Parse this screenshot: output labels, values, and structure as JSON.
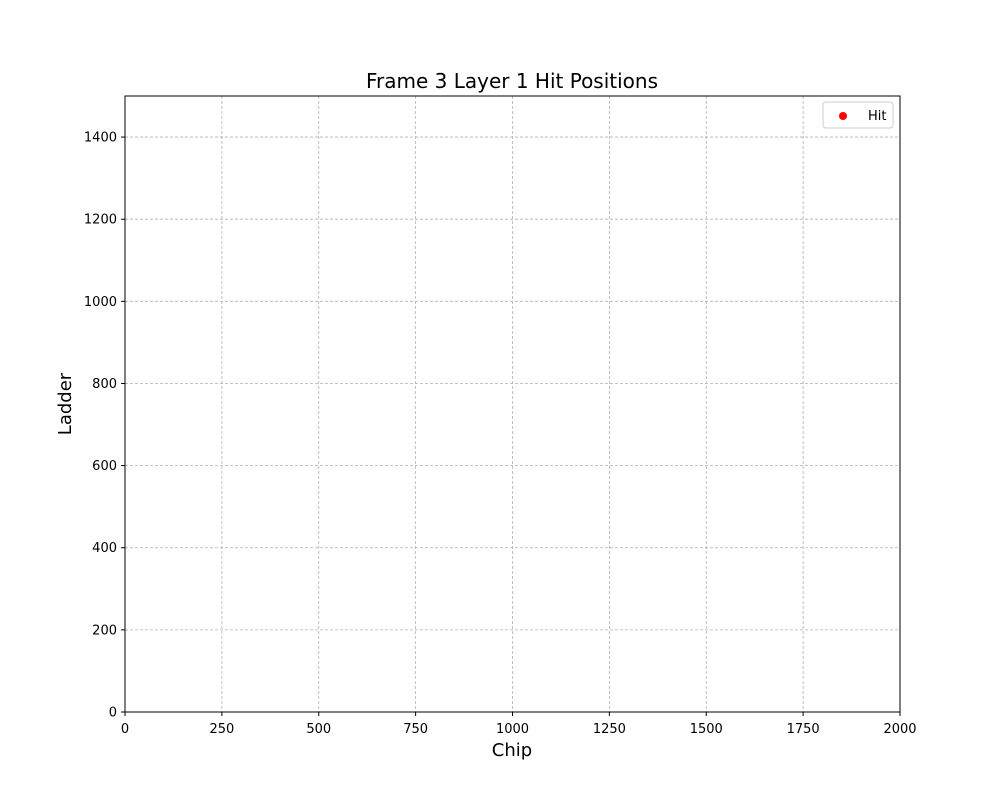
{
  "chart_data": {
    "type": "scatter",
    "title": "Frame 3 Layer 1 Hit Positions",
    "xlabel": "Chip",
    "ylabel": "Ladder",
    "xlim": [
      0,
      2000
    ],
    "ylim": [
      0,
      1500
    ],
    "xticks": [
      0,
      250,
      500,
      750,
      1000,
      1250,
      1500,
      1750,
      2000
    ],
    "yticks": [
      0,
      200,
      400,
      600,
      800,
      1000,
      1200,
      1400
    ],
    "grid": true,
    "legend_position": "top-right",
    "series": [
      {
        "name": "Hit",
        "color": "#ff0000",
        "marker": "circle",
        "points": []
      }
    ]
  }
}
